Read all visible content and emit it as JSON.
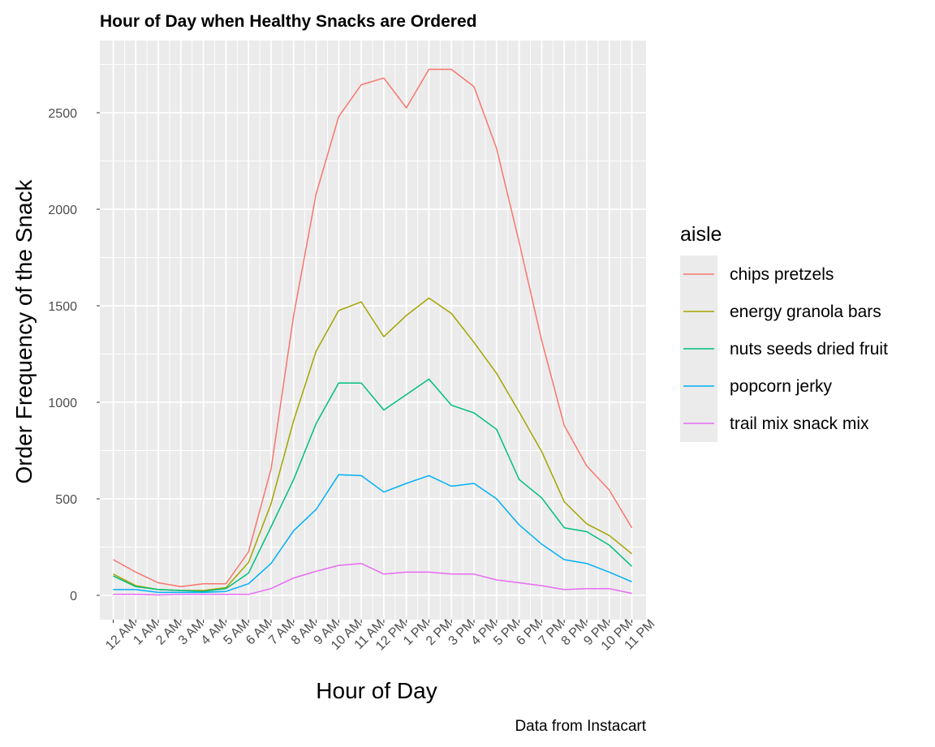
{
  "chart_data": {
    "type": "line",
    "title": "Hour of Day when Healthy Snacks are Ordered",
    "xlabel": "Hour of Day",
    "ylabel": "Order Frequency of the Snack",
    "caption": "Data from Instacart",
    "categories": [
      "12 AM",
      "1 AM",
      "2 AM",
      "3 AM",
      "4 AM",
      "5 AM",
      "6 AM",
      "7 AM",
      "8 AM",
      "9 AM",
      "10 AM",
      "11 AM",
      "12 PM",
      "1 PM",
      "2 PM",
      "3 PM",
      "4 PM",
      "5 PM",
      "6 PM",
      "7 PM",
      "8 PM",
      "9 PM",
      "10 PM",
      "11 PM"
    ],
    "yticks": [
      0,
      500,
      1000,
      1500,
      2000,
      2500
    ],
    "ylim": [
      -130,
      2870
    ],
    "grid": true,
    "legend": {
      "title": "aisle",
      "position": "right"
    },
    "series": [
      {
        "name": "chips pretzels",
        "color": "#F8766D",
        "values": [
          185,
          120,
          65,
          45,
          60,
          60,
          225,
          655,
          1450,
          2080,
          2480,
          2645,
          2680,
          2525,
          2725,
          2725,
          2635,
          2315,
          1830,
          1320,
          880,
          670,
          545,
          350
        ]
      },
      {
        "name": "energy granola bars",
        "color": "#A3A500",
        "values": [
          110,
          50,
          30,
          25,
          25,
          40,
          170,
          475,
          905,
          1265,
          1475,
          1520,
          1340,
          1450,
          1540,
          1460,
          1310,
          1150,
          950,
          745,
          485,
          370,
          310,
          215
        ]
      },
      {
        "name": "nuts seeds dried fruit",
        "color": "#00BF7D",
        "values": [
          100,
          45,
          30,
          25,
          20,
          35,
          115,
          355,
          600,
          890,
          1100,
          1100,
          960,
          1040,
          1120,
          985,
          945,
          860,
          600,
          505,
          350,
          330,
          260,
          150
        ]
      },
      {
        "name": "popcorn jerky",
        "color": "#00B0F6",
        "values": [
          30,
          30,
          15,
          15,
          15,
          20,
          60,
          165,
          335,
          445,
          625,
          620,
          535,
          580,
          620,
          565,
          580,
          500,
          365,
          265,
          185,
          165,
          120,
          70
        ]
      },
      {
        "name": "trail mix snack mix",
        "color": "#E76BF3",
        "values": [
          5,
          5,
          2,
          5,
          5,
          5,
          5,
          35,
          90,
          125,
          155,
          165,
          110,
          120,
          120,
          110,
          110,
          80,
          65,
          50,
          30,
          35,
          35,
          10
        ]
      }
    ]
  },
  "colors": {
    "panel_background": "#EBEBEB",
    "grid_line": "#FFFFFF"
  }
}
